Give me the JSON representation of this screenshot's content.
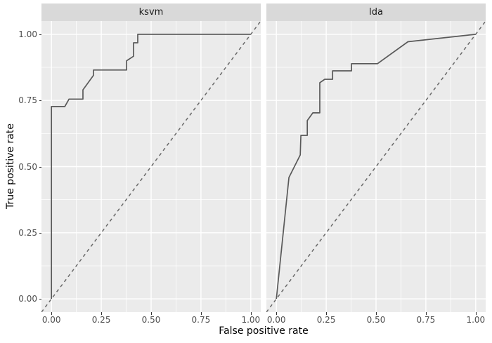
{
  "chart_data": {
    "type": "line",
    "subtype": "faceted-roc-step-curves",
    "title": "",
    "xlabel": "False positive rate",
    "ylabel": "True positive rate",
    "xlim": [
      0,
      1
    ],
    "ylim": [
      0,
      1
    ],
    "legend": "none",
    "grid": {
      "major": true,
      "minor": true
    },
    "x_ticks": {
      "values": [
        0,
        0.25,
        0.5,
        0.75,
        1
      ],
      "labels": [
        "0.00",
        "0.25",
        "0.50",
        "0.75",
        "1.00"
      ]
    },
    "y_ticks": {
      "values": [
        0,
        0.25,
        0.5,
        0.75,
        1
      ],
      "labels": [
        "0.00",
        "0.25",
        "0.50",
        "0.75",
        "1.00"
      ]
    },
    "reference_line": {
      "slope": 1,
      "intercept": 0,
      "style": "dashed"
    },
    "facets": [
      {
        "label": "ksvm",
        "points": [
          [
            0,
            0
          ],
          [
            0,
            0.727
          ],
          [
            0.067,
            0.727
          ],
          [
            0.088,
            0.755
          ],
          [
            0.158,
            0.755
          ],
          [
            0.158,
            0.79
          ],
          [
            0.211,
            0.845
          ],
          [
            0.211,
            0.865
          ],
          [
            0.377,
            0.865
          ],
          [
            0.377,
            0.9
          ],
          [
            0.412,
            0.917
          ],
          [
            0.412,
            0.968
          ],
          [
            0.433,
            0.968
          ],
          [
            0.433,
            1
          ],
          [
            1,
            1
          ]
        ]
      },
      {
        "label": "lda",
        "points": [
          [
            0,
            0
          ],
          [
            0.063,
            0.459
          ],
          [
            0.12,
            0.544
          ],
          [
            0.123,
            0.618
          ],
          [
            0.155,
            0.618
          ],
          [
            0.155,
            0.674
          ],
          [
            0.183,
            0.703
          ],
          [
            0.218,
            0.703
          ],
          [
            0.218,
            0.817
          ],
          [
            0.243,
            0.83
          ],
          [
            0.282,
            0.83
          ],
          [
            0.282,
            0.862
          ],
          [
            0.377,
            0.862
          ],
          [
            0.377,
            0.889
          ],
          [
            0.507,
            0.889
          ],
          [
            0.66,
            0.972
          ],
          [
            1,
            1
          ]
        ]
      }
    ],
    "theme": {
      "figure_bg": "#FFFFFF",
      "panel_bg": "#EBEBEB",
      "strip_bg": "#D9D9D9",
      "strip_text_color": "#1A1A1A",
      "grid_color": "#FFFFFF",
      "curve_color": "#595959",
      "reference_color": "#696969",
      "axis_text_color": "#4D4D4D",
      "axis_title_color": "#000000",
      "tick_color": "#333333"
    }
  }
}
